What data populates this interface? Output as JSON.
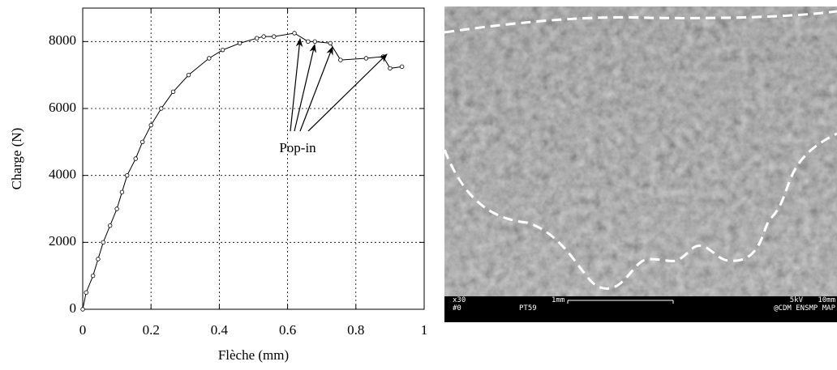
{
  "chart_data": {
    "type": "line",
    "x": [
      0,
      0.01,
      0.03,
      0.045,
      0.06,
      0.08,
      0.1,
      0.115,
      0.13,
      0.155,
      0.175,
      0.2,
      0.23,
      0.265,
      0.31,
      0.37,
      0.41,
      0.46,
      0.51,
      0.53,
      0.56,
      0.62,
      0.66,
      0.68,
      0.725,
      0.755,
      0.83,
      0.88,
      0.9,
      0.935
    ],
    "values": [
      0,
      500,
      1000,
      1500,
      2000,
      2500,
      3000,
      3500,
      4000,
      4500,
      5000,
      5500,
      6000,
      6500,
      7000,
      7500,
      7750,
      7950,
      8100,
      8150,
      8150,
      8250,
      8000,
      8000,
      7950,
      7450,
      7500,
      7550,
      7200,
      7250
    ],
    "color": "#000000",
    "xlabel": "Flèche (mm)",
    "ylabel": "Charge (N)",
    "xlim": [
      0,
      1
    ],
    "xticks": [
      0,
      0.2,
      0.4,
      0.6,
      0.8,
      1
    ],
    "ylim": [
      0,
      9000
    ],
    "yticks": [
      0,
      2000,
      4000,
      6000,
      8000
    ],
    "grid": true,
    "annotation": "Pop-in"
  },
  "micrograph": {
    "labels": [
      "x30",
      "#0",
      "1mm",
      "PT59",
      "5kV",
      "10mm",
      "@CDM ENSMP MAP"
    ]
  }
}
